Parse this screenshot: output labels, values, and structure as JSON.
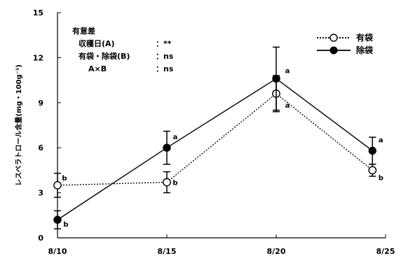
{
  "chart_data": {
    "type": "line",
    "ylabel": "レスベラトロール含量(mg・100g⁻¹)",
    "xlabel": "",
    "ylim": [
      0,
      15
    ],
    "y_ticks": [
      0,
      3,
      6,
      9,
      12,
      15
    ],
    "x_tick_labels": [
      "8/10",
      "8/15",
      "8/20",
      "8/25"
    ],
    "x_ticks_day": [
      10,
      15,
      20,
      25
    ],
    "legend_position": "top-right",
    "series": [
      {
        "name": "有袋",
        "marker": "open-circle",
        "line_style": "dotted",
        "x": [
          10,
          15,
          20,
          24.4
        ],
        "y": [
          3.5,
          3.7,
          9.6,
          4.5
        ],
        "err": [
          0.8,
          0.7,
          1.2,
          0.4
        ],
        "sig_labels": [
          "b",
          "b",
          "a",
          "b"
        ]
      },
      {
        "name": "除袋",
        "marker": "filled-circle",
        "line_style": "solid",
        "x": [
          10,
          15,
          20,
          24.4
        ],
        "y": [
          1.2,
          6.0,
          10.6,
          5.8
        ],
        "err": [
          0.6,
          1.1,
          2.1,
          0.9
        ],
        "sig_labels": [
          "b",
          "a",
          "a",
          "a"
        ]
      }
    ]
  },
  "stats": {
    "title": "有意差",
    "rows": [
      {
        "label": "収穫日(A)",
        "value": "：**"
      },
      {
        "label": "有袋・除袋(B)",
        "value": "：ns"
      },
      {
        "label": "A×B",
        "value": "：ns"
      }
    ]
  }
}
